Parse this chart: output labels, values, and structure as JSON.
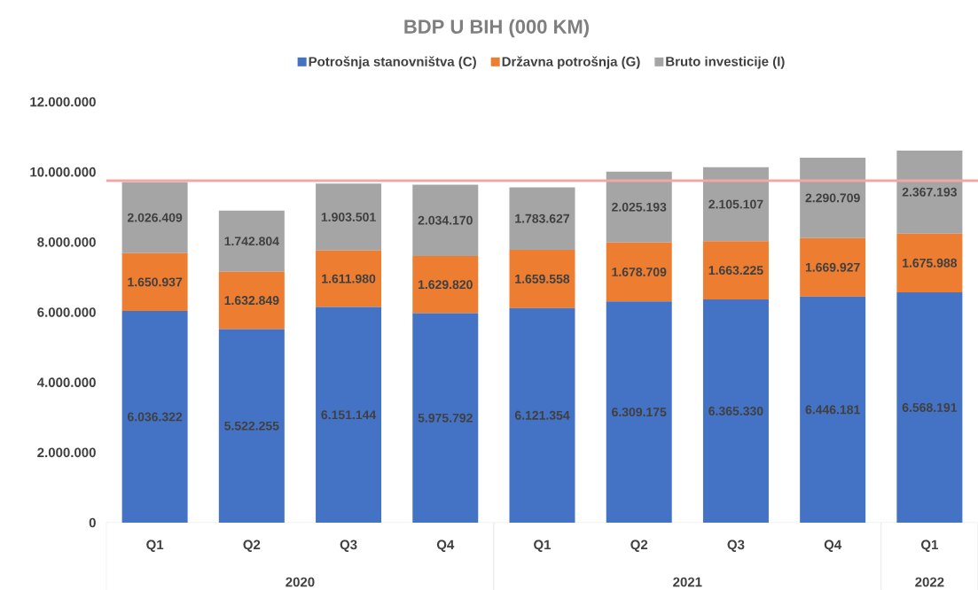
{
  "chart_data": {
    "type": "bar",
    "stacked": true,
    "title": "BDP U BIH (000 KM)",
    "categories": [
      "Q1",
      "Q2",
      "Q3",
      "Q4",
      "Q1",
      "Q2",
      "Q3",
      "Q4",
      "Q1"
    ],
    "series": [
      {
        "name": "Potrošnja stanovništva (C)",
        "color": "#4472c4",
        "values": [
          6036322,
          5522255,
          6151144,
          5975792,
          6121354,
          6309175,
          6365330,
          6446181,
          6568191
        ],
        "value_labels": [
          "6.036.322",
          "5.522.255",
          "6.151.144",
          "5.975.792",
          "6.121.354",
          "6.309.175",
          "6.365.330",
          "6.446.181",
          "6.568.191"
        ]
      },
      {
        "name": "Državna potrošnja (G)",
        "color": "#ed7d31",
        "values": [
          1650937,
          1632849,
          1611980,
          1629820,
          1659558,
          1678709,
          1663225,
          1669927,
          1675988
        ],
        "value_labels": [
          "1.650.937",
          "1.632.849",
          "1.611.980",
          "1.629.820",
          "1.659.558",
          "1.678.709",
          "1.663.225",
          "1.669.927",
          "1.675.988"
        ]
      },
      {
        "name": "Bruto investicije (I)",
        "color": "#a5a5a5",
        "values": [
          2026409,
          1742804,
          1903501,
          2034170,
          1783627,
          2025193,
          2105107,
          2290709,
          2367193
        ],
        "value_labels": [
          "2.026.409",
          "1.742.804",
          "1.903.501",
          "2.034.170",
          "1.783.627",
          "2.025.193",
          "2.105.107",
          "2.290.709",
          "2.367.193"
        ]
      }
    ],
    "ylim": [
      0,
      12000000
    ],
    "yticks": [
      0,
      {
        "value": 2000000,
        "label": "2.000.000"
      },
      {
        "value": 4000000,
        "label": "4.000.000"
      },
      {
        "value": 6000000,
        "label": "6.000.000"
      },
      {
        "value": 8000000,
        "label": "8.000.000"
      },
      {
        "value": 10000000,
        "label": "10.000.000"
      },
      {
        "value": 12000000,
        "label": "12.000.000"
      }
    ],
    "ref_lines": [
      {
        "axis": "y",
        "value": 9750000,
        "color": "#f4a6a6"
      }
    ],
    "legend": "top",
    "annotations": [
      "2020",
      "2021",
      "2022"
    ]
  }
}
